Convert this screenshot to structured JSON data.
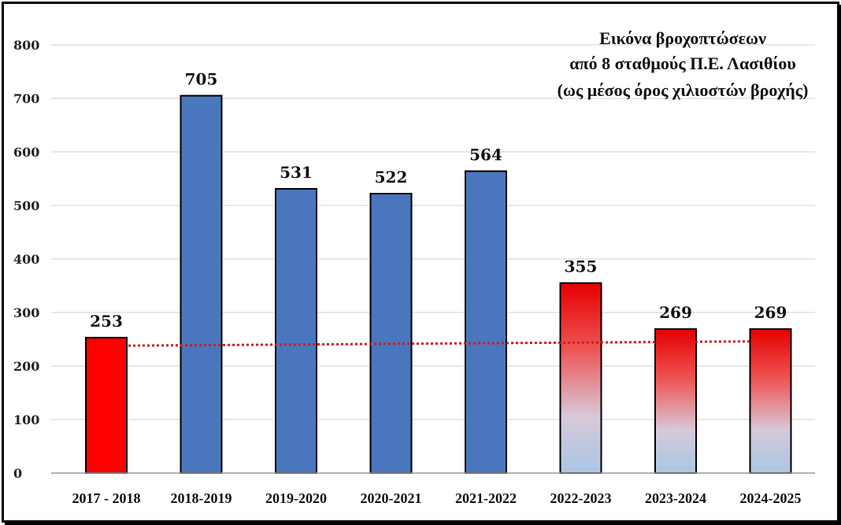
{
  "chart_data": {
    "type": "bar",
    "title_lines": [
      "Εικόνα βροχοπτώσεων",
      "από 8 σταθμούς Π.Ε. Λασιθίου",
      "(ως μέσος όρος χιλιοστών βροχής)"
    ],
    "categories": [
      "2017 - 2018",
      "2018-2019",
      "2019-2020",
      "2020-2021",
      "2021-2022",
      "2022-2023",
      "2023-2024",
      "2024-2025"
    ],
    "values": [
      253,
      705,
      531,
      522,
      564,
      355,
      269,
      269
    ],
    "data_labels": [
      "253",
      "705",
      "531",
      "522",
      "564",
      "355",
      "269",
      "269"
    ],
    "bar_fills": [
      "red",
      "blue",
      "blue",
      "blue",
      "blue",
      "gradient",
      "gradient",
      "gradient"
    ],
    "yticks": [
      0,
      100,
      200,
      300,
      400,
      500,
      600,
      700,
      800
    ],
    "ytick_labels": [
      "0",
      "100",
      "200",
      "300",
      "400",
      "500",
      "600",
      "700",
      "800"
    ],
    "ylim": [
      0,
      800
    ],
    "grid": true,
    "reference_line": {
      "style": "dotted",
      "color": "#d01c1c",
      "start_value": 238,
      "end_value": 246
    },
    "colors": {
      "red": "#ff0000",
      "blue": "#4a76be",
      "gradient_top": "#e60000",
      "gradient_bottom": "#a9c7e6"
    },
    "legend": "none"
  }
}
